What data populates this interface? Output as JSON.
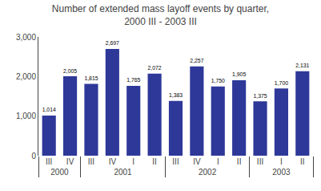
{
  "chart_data": {
    "type": "bar",
    "title": "Number of extended mass layoff events by quarter,\n2000 III - 2003 III",
    "categories": [
      "III",
      "IV",
      "I",
      "II",
      "III",
      "IV",
      "I",
      "II",
      "III",
      "IV",
      "I",
      "II",
      "III"
    ],
    "category_groups": [
      "2000",
      "2000",
      "2001",
      "2001",
      "2001",
      "2001",
      "2002",
      "2002",
      "2002",
      "2002",
      "2003",
      "2003",
      "2003"
    ],
    "values": [
      1014,
      2005,
      1765,
      2072,
      1815,
      2697,
      1750,
      1905,
      1383,
      2257,
      1700,
      2131,
      1375
    ],
    "value_labels": [
      "1,014",
      "2,005",
      "1,765",
      "2,072",
      "1,815",
      "2,697",
      "1,750",
      "1,905",
      "1,383",
      "2,257",
      "1,700",
      "2,131",
      "1,375"
    ],
    "data_labels": true,
    "color": "#2E3899",
    "ylim": [
      0,
      3000
    ],
    "yticks": [
      0,
      {
        "value": 1000,
        "label": "1,000"
      },
      {
        "value": 2000,
        "label": "2,000"
      },
      {
        "value": 3000,
        "label": "3,000"
      }
    ],
    "grid": false
  }
}
